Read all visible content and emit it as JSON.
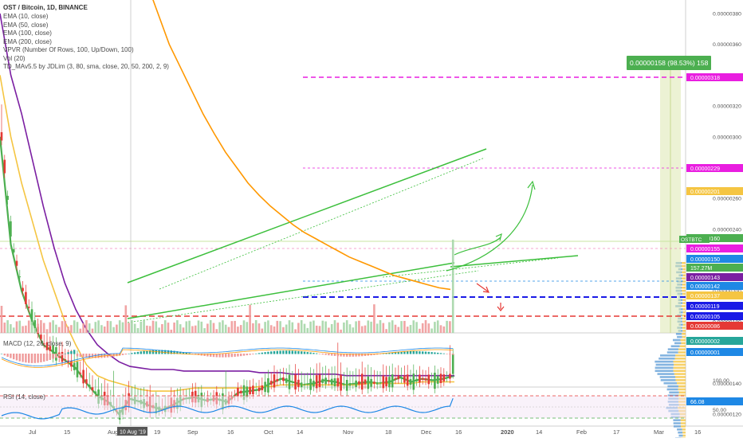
{
  "header": {
    "title": "OST / Bitcoin, 1D, BINANCE",
    "indicators": [
      "EMA (10, close)",
      "EMA (50, close)",
      "EMA (100, close)",
      "EMA (200, close)",
      "VPVR (Number Of Rows, 100, Up/Down, 100)",
      "Vol (20)",
      "TD_MAv5.5 by JDLim (3, 80, sma, close, 20, 50, 200, 2, 9)"
    ]
  },
  "panes": {
    "macd": {
      "title": "MACD (12, 26, close, 9)"
    },
    "rsi": {
      "title": "RSI (14, close)"
    }
  },
  "chart_data": {
    "type": "line",
    "title": "OST / Bitcoin, 1D, BINANCE",
    "yticks": [
      "0.00000380",
      "0.00000360",
      "0.00000340",
      "0.00000320",
      "0.00000300",
      "0.00000280",
      "0.00000260",
      "0.00000240",
      "0.00000220",
      "0.00000200",
      "0.00000180",
      "0.00000160",
      "0.00000140",
      "0.00000120",
      "0.00000100"
    ],
    "xticks": [
      "Jul",
      "15",
      "Aug",
      "10 Aug '19",
      "19",
      "Sep",
      "16",
      "Oct",
      "14",
      "Nov",
      "18",
      "Dec",
      "16",
      "2020",
      "14",
      "Feb",
      "17",
      "Mar",
      "16"
    ],
    "ylim": [
      8.6e-07,
      3.9e-06
    ],
    "price_tags": [
      {
        "label": "0.00000318",
        "color": "#e91ee0"
      },
      {
        "label": "0.00000229",
        "color": "#e91ee0"
      },
      {
        "label": "0.00000201",
        "color": "#f5c542"
      },
      {
        "label": "0.00000160",
        "color": "#4caf50"
      },
      {
        "label": "0.00000155",
        "color": "#e91ee0"
      },
      {
        "label": "0.00000150",
        "color": "#1e88e5"
      },
      {
        "label": "157.27M",
        "color": "#4caf50"
      },
      {
        "label": "0.00000143",
        "color": "#7b1fa2"
      },
      {
        "label": "0.00000142",
        "color": "#1e88e5"
      },
      {
        "label": "0.00000137",
        "color": "#f5c542"
      },
      {
        "label": "0.00000119",
        "color": "#1a1ae6"
      },
      {
        "label": "0.00000105",
        "color": "#1a1ae6"
      },
      {
        "label": "0.00000086",
        "color": "#e53935"
      }
    ],
    "symbol_tag": "OSTBTC",
    "measure_label": "0.00000158 (98.53%) 158",
    "macd_tags": [
      "0.00000002",
      "0.00000001"
    ],
    "rsi_tags": [
      "66.08",
      "50.00"
    ],
    "rsi_ticks": [
      "100.00",
      "50.00"
    ],
    "series": [
      {
        "name": "EMA (10, close)",
        "color": "#4caf50",
        "values": [
          300,
          230,
          200,
          180,
          165,
          160,
          155,
          150,
          140,
          132,
          128,
          120,
          130,
          128,
          125,
          123,
          126,
          130,
          131,
          129,
          130,
          128,
          134,
          135,
          136,
          140,
          143,
          141,
          139,
          140,
          142,
          141,
          139,
          140,
          141,
          140,
          141,
          144,
          141,
          143,
          142,
          143,
          145
        ]
      },
      {
        "name": "EMA (50, close)",
        "color": "#f5c542",
        "values": [
          340,
          300,
          270,
          245,
          220,
          200,
          180,
          165,
          152,
          145,
          142,
          140,
          138,
          136,
          135,
          135,
          135,
          136,
          137,
          137,
          137,
          137,
          137,
          137,
          138,
          138,
          139,
          139,
          139,
          139,
          139,
          139,
          139,
          139,
          140,
          140,
          140,
          140,
          140,
          141,
          141,
          141,
          141
        ]
      },
      {
        "name": "EMA (100, close)",
        "color": "#7b1fa2",
        "values": [
          380,
          340,
          315,
          285,
          255,
          228,
          205,
          188,
          175,
          165,
          159,
          154,
          151,
          150,
          149,
          149,
          149,
          148,
          148,
          148,
          148,
          148,
          148,
          148,
          147,
          147,
          147,
          146,
          146,
          146,
          146,
          146,
          145,
          145,
          145,
          145,
          145,
          145,
          145,
          145,
          145,
          145,
          145
        ]
      },
      {
        "name": "EMA (200, close)",
        "color": "#ff9800",
        "values": [
          420,
          400,
          380,
          360,
          345,
          330,
          315,
          302,
          290,
          280,
          270,
          262,
          255,
          249,
          243,
          238,
          234,
          230,
          226,
          222,
          219,
          216,
          213,
          210,
          208,
          206,
          204,
          202,
          201
        ]
      }
    ],
    "legend": "top-left",
    "grid": false
  }
}
